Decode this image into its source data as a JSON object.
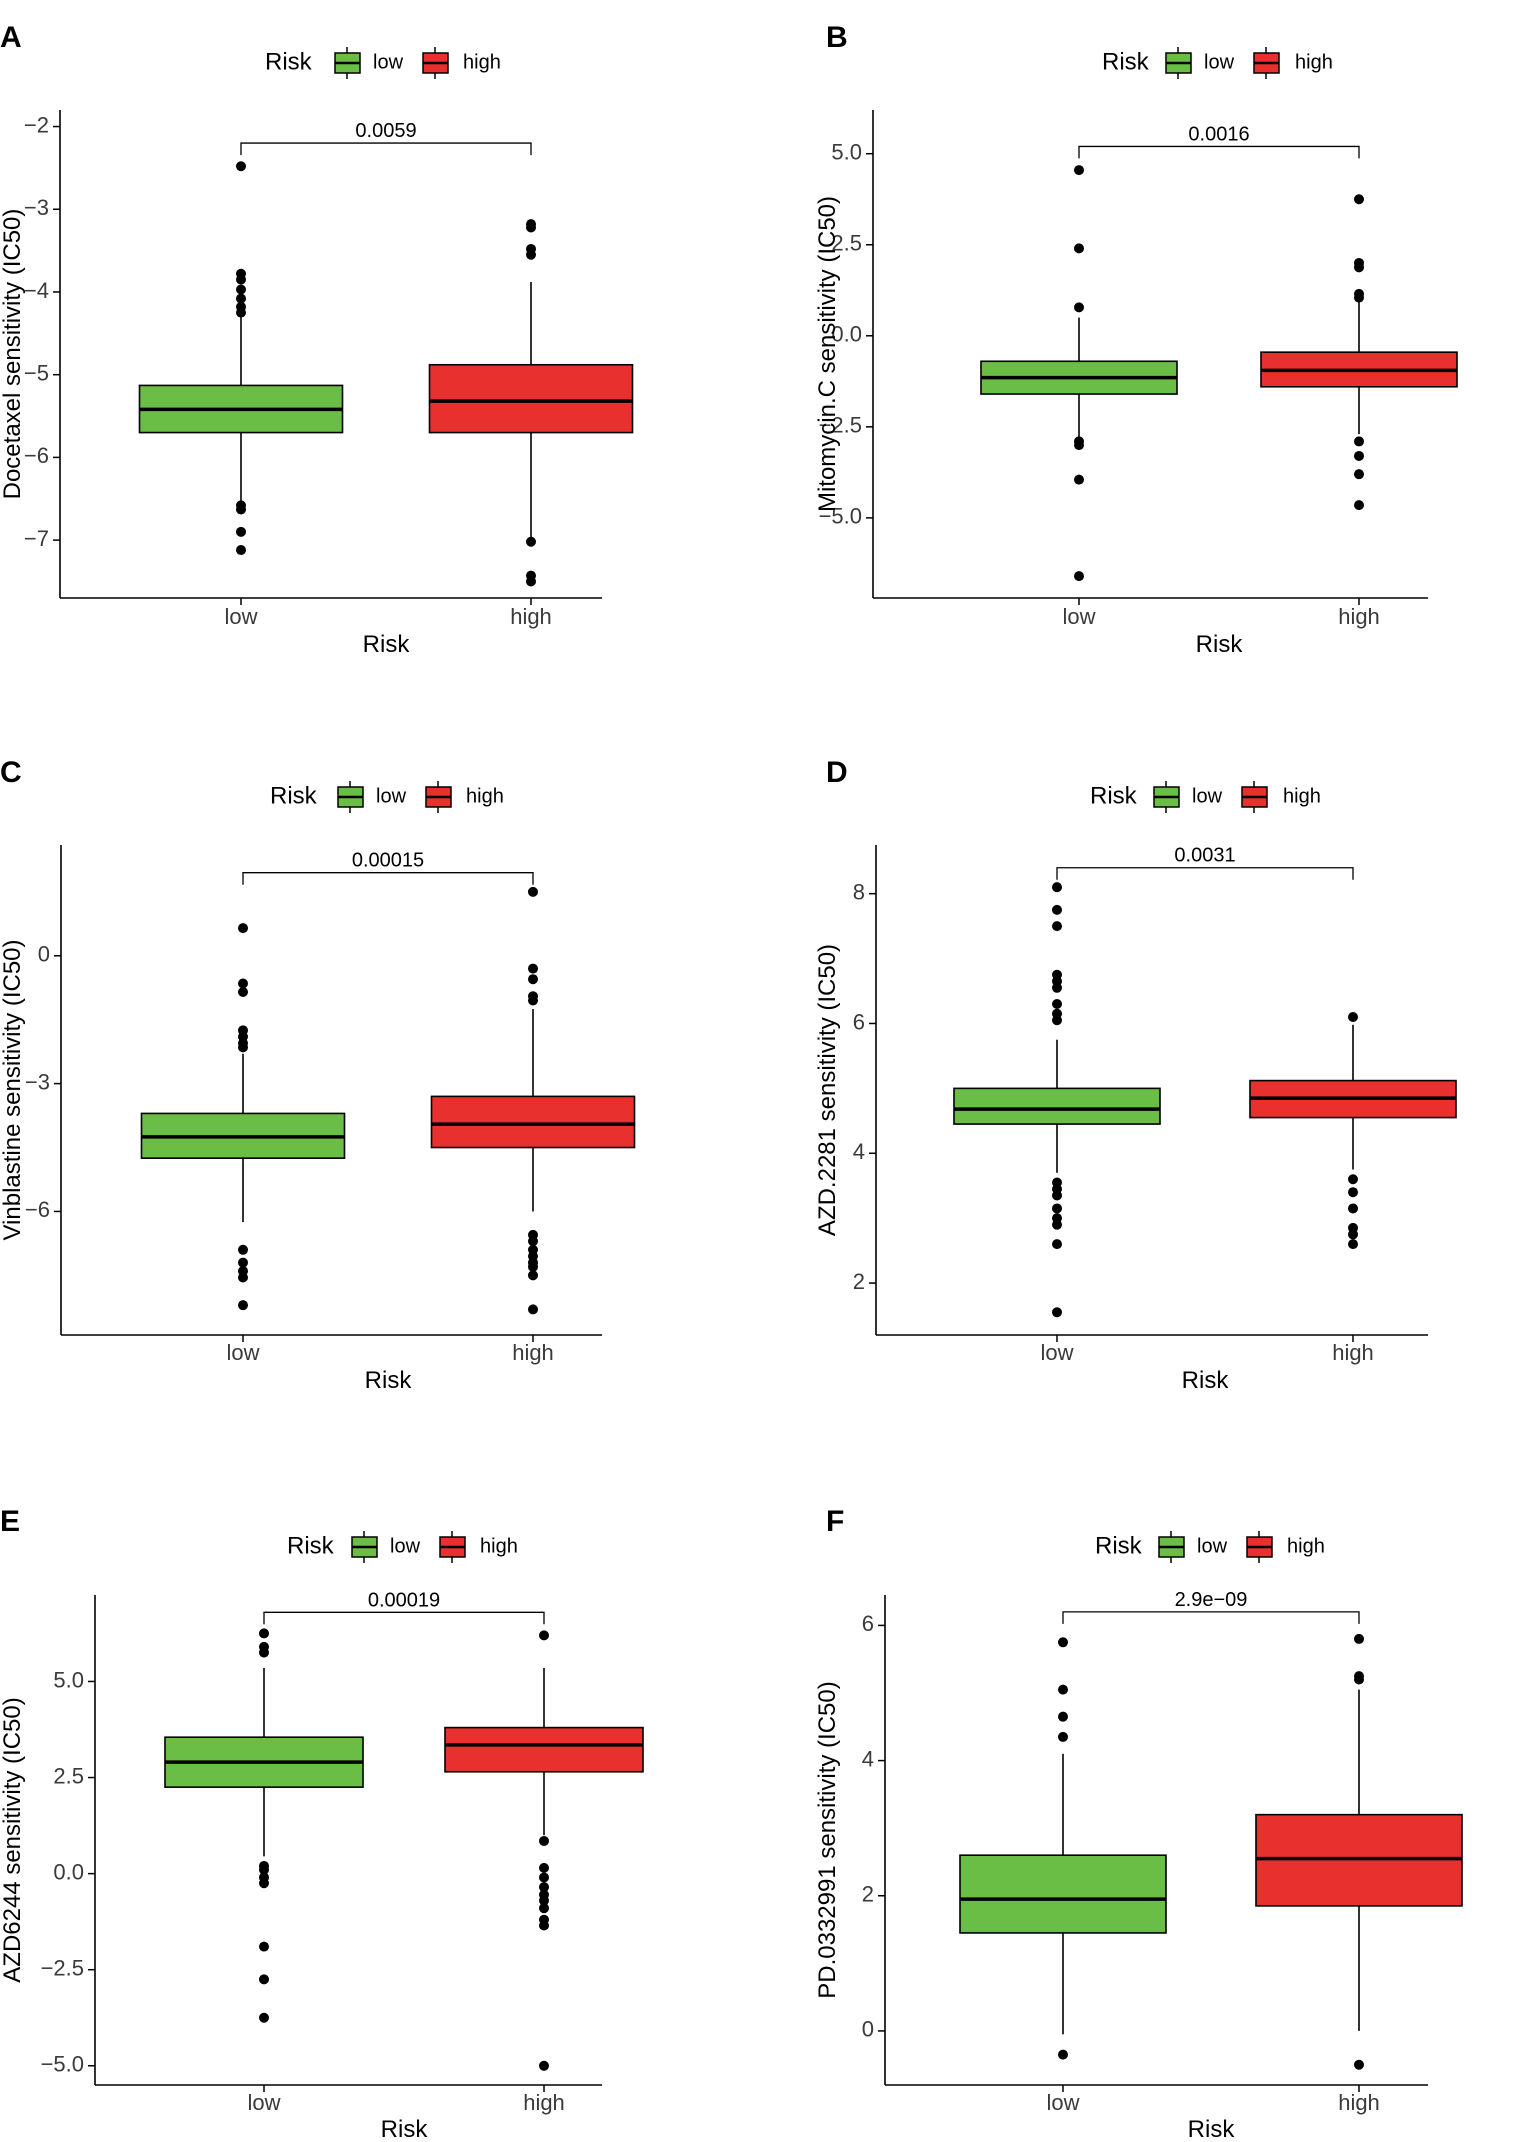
{
  "legend": {
    "title": "Risk",
    "labels": [
      "low",
      "high"
    ]
  },
  "colors": {
    "low": "#6abd45",
    "high": "#e8312f",
    "outline": "#000000"
  },
  "chart_data": [
    {
      "panel": "A",
      "type": "box",
      "xlabel": "Risk",
      "ylabel": "Docetaxel sensitivity (IC50)",
      "categories": [
        "low",
        "high"
      ],
      "ylim": [
        -7.7,
        -1.8
      ],
      "yticks": [
        -7,
        -6,
        -5,
        -4,
        -3,
        -2
      ],
      "ytick_labels": [
        "−7",
        "−6",
        "−5",
        "−4",
        "−3",
        "−2"
      ],
      "boxes": [
        {
          "q1": -5.7,
          "median": -5.42,
          "q3": -5.13,
          "whisker_low": -6.55,
          "whisker_high": -4.3,
          "outliers": [
            -2.48,
            -3.78,
            -3.85,
            -3.97,
            -4.08,
            -4.18,
            -4.25,
            -6.58,
            -6.63,
            -6.9,
            -7.12
          ]
        },
        {
          "q1": -5.7,
          "median": -5.32,
          "q3": -4.88,
          "whisker_low": -7.0,
          "whisker_high": -3.88,
          "outliers": [
            -3.18,
            -3.22,
            -3.48,
            -3.55,
            -7.02,
            -7.43,
            -7.5
          ]
        }
      ],
      "pvalue": "0.0059",
      "pvalue_y": -2.2
    },
    {
      "panel": "B",
      "type": "box",
      "xlabel": "Risk",
      "ylabel": "Mitomycin.C sensitivity (IC50)",
      "categories": [
        "low",
        "high"
      ],
      "ylim": [
        -7.2,
        6.2
      ],
      "yticks": [
        -5,
        -2.5,
        0,
        2.5,
        5
      ],
      "ytick_labels": [
        "−5.0",
        "−2.5",
        "0.0",
        "2.5",
        "5.0"
      ],
      "boxes": [
        {
          "q1": -1.6,
          "median": -1.15,
          "q3": -0.7,
          "whisker_low": -2.8,
          "whisker_high": 0.5,
          "outliers": [
            4.55,
            2.4,
            0.78,
            -2.9,
            -3.0,
            -3.95,
            -6.6
          ]
        },
        {
          "q1": -1.4,
          "median": -0.95,
          "q3": -0.45,
          "whisker_low": -2.7,
          "whisker_high": 0.95,
          "outliers": [
            3.75,
            2.0,
            1.88,
            1.15,
            1.05,
            -2.9,
            -3.3,
            -3.8,
            -4.65
          ]
        }
      ],
      "pvalue": "0.0016",
      "pvalue_y": 5.2
    },
    {
      "panel": "C",
      "type": "box",
      "xlabel": "Risk",
      "ylabel": "Vinblastine sensitivity (IC50)",
      "categories": [
        "low",
        "high"
      ],
      "ylim": [
        -8.9,
        2.6
      ],
      "yticks": [
        -6,
        -3,
        0
      ],
      "ytick_labels": [
        "−6",
        "−3",
        "0"
      ],
      "boxes": [
        {
          "q1": -4.75,
          "median": -4.25,
          "q3": -3.7,
          "whisker_low": -6.25,
          "whisker_high": -2.3,
          "outliers": [
            0.65,
            -0.65,
            -0.85,
            -1.75,
            -1.9,
            -2.05,
            -2.15,
            -6.9,
            -7.2,
            -7.4,
            -7.55,
            -8.2
          ]
        },
        {
          "q1": -4.5,
          "median": -3.95,
          "q3": -3.3,
          "whisker_low": -6.0,
          "whisker_high": -1.25,
          "outliers": [
            1.5,
            -0.3,
            -0.55,
            -0.95,
            -1.05,
            -6.55,
            -6.7,
            -6.9,
            -7.05,
            -7.2,
            -7.3,
            -7.5,
            -8.3
          ]
        }
      ],
      "pvalue": "0.00015",
      "pvalue_y": 1.95
    },
    {
      "panel": "D",
      "type": "box",
      "xlabel": "Risk",
      "ylabel": "AZD.2281 sensitivity (IC50)",
      "categories": [
        "low",
        "high"
      ],
      "ylim": [
        1.2,
        8.75
      ],
      "yticks": [
        2,
        4,
        6,
        8
      ],
      "ytick_labels": [
        "2",
        "4",
        "6",
        "8"
      ],
      "boxes": [
        {
          "q1": 4.45,
          "median": 4.68,
          "q3": 5.0,
          "whisker_low": 3.7,
          "whisker_high": 5.75,
          "outliers": [
            8.1,
            7.75,
            7.5,
            6.75,
            6.65,
            6.55,
            6.3,
            6.15,
            6.05,
            3.55,
            3.45,
            3.35,
            3.15,
            3.0,
            2.9,
            2.6,
            1.55
          ]
        },
        {
          "q1": 4.55,
          "median": 4.85,
          "q3": 5.12,
          "whisker_low": 3.75,
          "whisker_high": 5.98,
          "outliers": [
            6.1,
            3.6,
            3.4,
            3.15,
            2.85,
            2.75,
            2.6
          ]
        }
      ],
      "pvalue": "0.0031",
      "pvalue_y": 8.4
    },
    {
      "panel": "E",
      "type": "box",
      "xlabel": "Risk",
      "ylabel": "AZD6244 sensitivity (IC50)",
      "categories": [
        "low",
        "high"
      ],
      "ylim": [
        -5.5,
        7.25
      ],
      "yticks": [
        -5,
        -2.5,
        0,
        2.5,
        5
      ],
      "ytick_labels": [
        "−5.0",
        "−2.5",
        "0.0",
        "2.5",
        "5.0"
      ],
      "boxes": [
        {
          "q1": 2.25,
          "median": 2.9,
          "q3": 3.55,
          "whisker_low": 0.45,
          "whisker_high": 5.35,
          "outliers": [
            6.25,
            5.9,
            5.75,
            0.2,
            0.1,
            -0.1,
            -0.25,
            -1.9,
            -2.75,
            -3.75
          ]
        },
        {
          "q1": 2.65,
          "median": 3.35,
          "q3": 3.8,
          "whisker_low": 1.0,
          "whisker_high": 5.35,
          "outliers": [
            6.2,
            0.85,
            0.15,
            -0.1,
            -0.35,
            -0.55,
            -0.7,
            -0.9,
            -1.2,
            -1.35,
            -5.0
          ]
        }
      ],
      "pvalue": "0.00019",
      "pvalue_y": 6.8
    },
    {
      "panel": "F",
      "type": "box",
      "xlabel": "Risk",
      "ylabel": "PD.0332991 sensitivity (IC50)",
      "categories": [
        "low",
        "high"
      ],
      "ylim": [
        -0.8,
        6.45
      ],
      "yticks": [
        0,
        2,
        4,
        6
      ],
      "ytick_labels": [
        "0",
        "2",
        "4",
        "6"
      ],
      "boxes": [
        {
          "q1": 1.45,
          "median": 1.95,
          "q3": 2.6,
          "whisker_low": -0.05,
          "whisker_high": 4.1,
          "outliers": [
            5.75,
            5.05,
            4.65,
            4.35,
            -0.35
          ]
        },
        {
          "q1": 1.85,
          "median": 2.55,
          "q3": 3.2,
          "whisker_low": 0.0,
          "whisker_high": 5.05,
          "outliers": [
            5.8,
            5.25,
            5.2,
            -0.5
          ]
        }
      ],
      "pvalue": "2.9e−09",
      "pvalue_y": 6.2
    }
  ]
}
